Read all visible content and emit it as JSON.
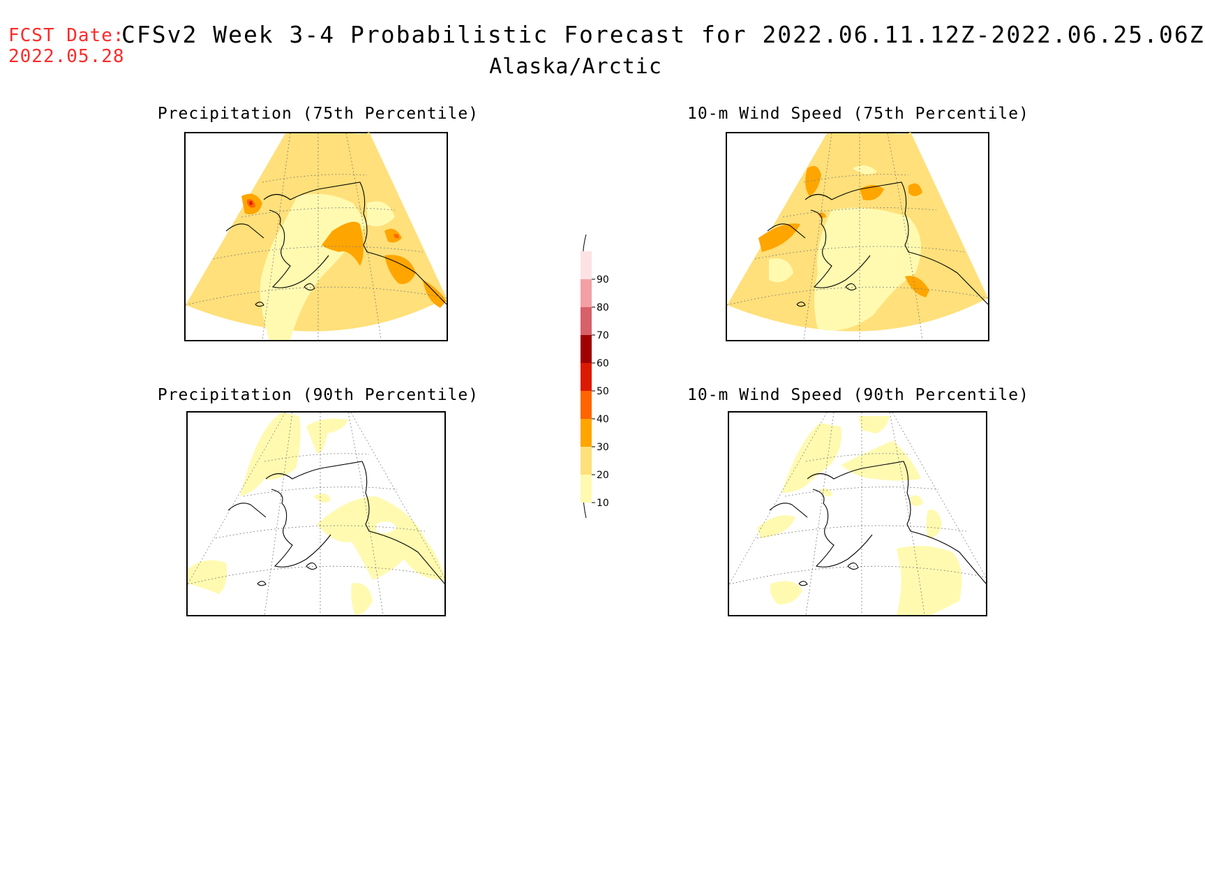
{
  "header": {
    "fcst_label": "FCST Date:",
    "fcst_date": "2022.05.28",
    "title": "CFSv2 Week 3-4 Probabilistic Forecast for 2022.06.11.12Z-2022.06.25.06Z",
    "region": "Alaska/Arctic"
  },
  "panels": [
    {
      "title": "Precipitation (75th Percentile)",
      "level": "75"
    },
    {
      "title": "10-m Wind Speed (75th Percentile)",
      "level": "75"
    },
    {
      "title": "Precipitation (90th Percentile)",
      "level": "90"
    },
    {
      "title": "10-m Wind Speed (90th Percentile)",
      "level": "90"
    }
  ],
  "colorbar": {
    "labels": [
      "90",
      "80",
      "70",
      "60",
      "50",
      "40",
      "30",
      "20",
      "10"
    ],
    "colors": [
      "#fde2e4",
      "#f2a0a4",
      "#d86068",
      "#a00000",
      "#dc1a00",
      "#ff6400",
      "#ffa500",
      "#ffe07a",
      "#fffab0"
    ]
  },
  "palette": {
    "light": "#fffab0",
    "medium": "#ffe07a",
    "orange": "#ffa500",
    "dark_orange": "#ff6400",
    "red": "#dc1a00"
  }
}
